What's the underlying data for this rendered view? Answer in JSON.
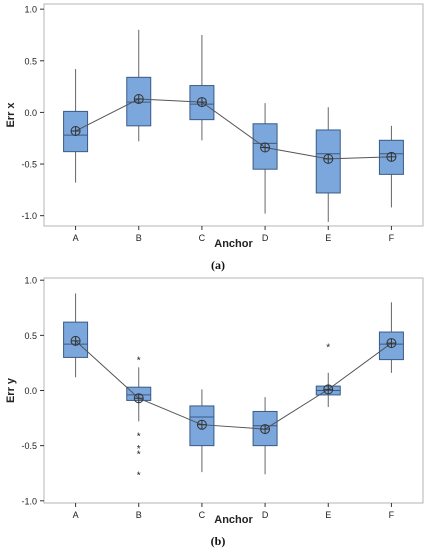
{
  "figure_labels": [
    "(a)",
    "(b)"
  ],
  "colors": {
    "box_fill": "#7ba7dc",
    "box_stroke": "#3a5a86",
    "line": "#555555",
    "frame": "#b5b5b5",
    "outlier": "#444444"
  },
  "chart_data": [
    {
      "type": "box",
      "xlabel": "Anchor",
      "ylabel": "Err x",
      "ylim": [
        -1.1,
        1.05
      ],
      "yticks": [
        "1.0",
        "0.5",
        "0.0",
        "-0.5",
        "-1.0"
      ],
      "ytick_values": [
        1.0,
        0.5,
        0.0,
        -0.5,
        -1.0
      ],
      "grid": false,
      "mean_connect_line": true,
      "categories": [
        "A",
        "B",
        "C",
        "D",
        "E",
        "F"
      ],
      "boxes": [
        {
          "min": -0.68,
          "q1": -0.38,
          "median": -0.22,
          "q3": 0.01,
          "max": 0.42,
          "mean": -0.18,
          "outliers": []
        },
        {
          "min": -0.28,
          "q1": -0.13,
          "median": 0.1,
          "q3": 0.34,
          "max": 0.8,
          "mean": 0.13,
          "outliers": []
        },
        {
          "min": -0.27,
          "q1": -0.07,
          "median": 0.08,
          "q3": 0.26,
          "max": 0.75,
          "mean": 0.1,
          "outliers": []
        },
        {
          "min": -0.98,
          "q1": -0.55,
          "median": -0.3,
          "q3": -0.11,
          "max": 0.09,
          "mean": -0.34,
          "outliers": []
        },
        {
          "min": -1.06,
          "q1": -0.78,
          "median": -0.4,
          "q3": -0.17,
          "max": 0.05,
          "mean": -0.45,
          "outliers": []
        },
        {
          "min": -0.92,
          "q1": -0.6,
          "median": -0.4,
          "q3": -0.27,
          "max": -0.13,
          "mean": -0.43,
          "outliers": []
        }
      ]
    },
    {
      "type": "box",
      "xlabel": "Anchor",
      "ylabel": "Err y",
      "ylim": [
        -1.02,
        1.02
      ],
      "yticks": [
        "1.0",
        "0.5",
        "0.0",
        "-0.5",
        "-1.0"
      ],
      "ytick_values": [
        1.0,
        0.5,
        0.0,
        -0.5,
        -1.0
      ],
      "grid": false,
      "mean_connect_line": true,
      "categories": [
        "A",
        "B",
        "C",
        "D",
        "E",
        "F"
      ],
      "boxes": [
        {
          "min": 0.12,
          "q1": 0.3,
          "median": 0.42,
          "q3": 0.62,
          "max": 0.88,
          "mean": 0.45,
          "outliers": []
        },
        {
          "min": -0.28,
          "q1": -0.09,
          "median": -0.04,
          "q3": 0.03,
          "max": 0.21,
          "mean": -0.07,
          "outliers": [
            0.28,
            -0.41,
            -0.52,
            -0.57,
            -0.76
          ]
        },
        {
          "min": -0.74,
          "q1": -0.5,
          "median": -0.24,
          "q3": -0.14,
          "max": 0.01,
          "mean": -0.31,
          "outliers": []
        },
        {
          "min": -0.76,
          "q1": -0.5,
          "median": -0.32,
          "q3": -0.19,
          "max": -0.06,
          "mean": -0.35,
          "outliers": []
        },
        {
          "min": -0.15,
          "q1": -0.04,
          "median": 0.0,
          "q3": 0.04,
          "max": 0.16,
          "mean": 0.01,
          "outliers": [
            0.4
          ]
        },
        {
          "min": 0.16,
          "q1": 0.28,
          "median": 0.42,
          "q3": 0.53,
          "max": 0.8,
          "mean": 0.43,
          "outliers": []
        }
      ]
    }
  ]
}
